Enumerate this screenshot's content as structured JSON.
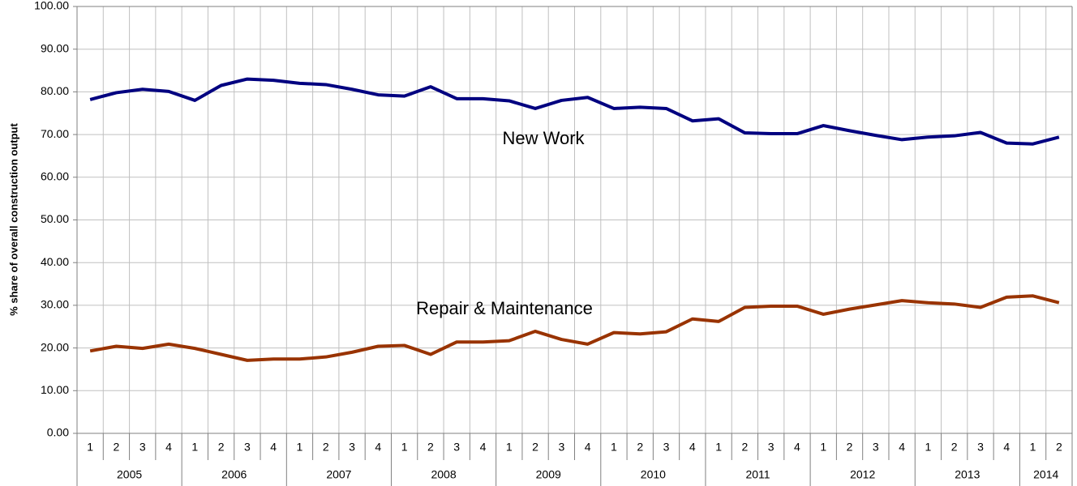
{
  "chart_data": {
    "type": "line",
    "y_label": "% share of overall construction output",
    "categories": [
      "1",
      "2",
      "3",
      "4",
      "1",
      "2",
      "3",
      "4",
      "1",
      "2",
      "3",
      "4",
      "1",
      "2",
      "3",
      "4",
      "1",
      "2",
      "3",
      "4",
      "1",
      "2",
      "3",
      "4",
      "1",
      "2",
      "3",
      "4",
      "1",
      "2",
      "3",
      "4",
      "1",
      "2",
      "3",
      "4",
      "1",
      "2"
    ],
    "groups": [
      "2005",
      "2006",
      "2007",
      "2008",
      "2009",
      "2010",
      "2011",
      "2012",
      "2013",
      "2014"
    ],
    "series": [
      {
        "name": "New Work",
        "color": "#000080",
        "values": [
          78.2,
          79.8,
          80.6,
          80.1,
          78.0,
          81.5,
          83.0,
          82.7,
          82.0,
          81.7,
          80.6,
          79.3,
          79.0,
          81.2,
          78.4,
          78.4,
          77.9,
          76.1,
          78.0,
          78.7,
          76.1,
          76.4,
          76.1,
          73.2,
          73.7,
          70.4,
          70.2,
          70.2,
          72.1,
          70.9,
          69.8,
          68.8,
          69.4,
          69.7,
          70.5,
          68.0,
          67.8,
          69.4
        ]
      },
      {
        "name": "Repair & Maintenance",
        "color": "#993300",
        "values": [
          19.3,
          20.4,
          19.9,
          20.9,
          19.9,
          18.5,
          17.1,
          17.4,
          17.4,
          17.9,
          19.0,
          20.4,
          20.6,
          18.5,
          21.4,
          21.4,
          21.7,
          23.9,
          22.0,
          20.9,
          23.6,
          23.3,
          23.8,
          26.8,
          26.2,
          29.5,
          29.8,
          29.8,
          27.9,
          29.1,
          30.1,
          31.1,
          30.6,
          30.3,
          29.5,
          31.9,
          32.2,
          30.6
        ]
      }
    ],
    "ylim": [
      0,
      100
    ],
    "yticks": [
      {
        "value": 0,
        "label": "0.00"
      },
      {
        "value": 10,
        "label": "10.00"
      },
      {
        "value": 20,
        "label": "20.00"
      },
      {
        "value": 30,
        "label": "30.00"
      },
      {
        "value": 40,
        "label": "40.00"
      },
      {
        "value": 50,
        "label": "50.00"
      },
      {
        "value": 60,
        "label": "60.00"
      },
      {
        "value": 70,
        "label": "70.00"
      },
      {
        "value": 80,
        "label": "80.00"
      },
      {
        "value": 90,
        "label": "90.00"
      },
      {
        "value": 100,
        "label": "100.00"
      }
    ],
    "grid": true
  }
}
